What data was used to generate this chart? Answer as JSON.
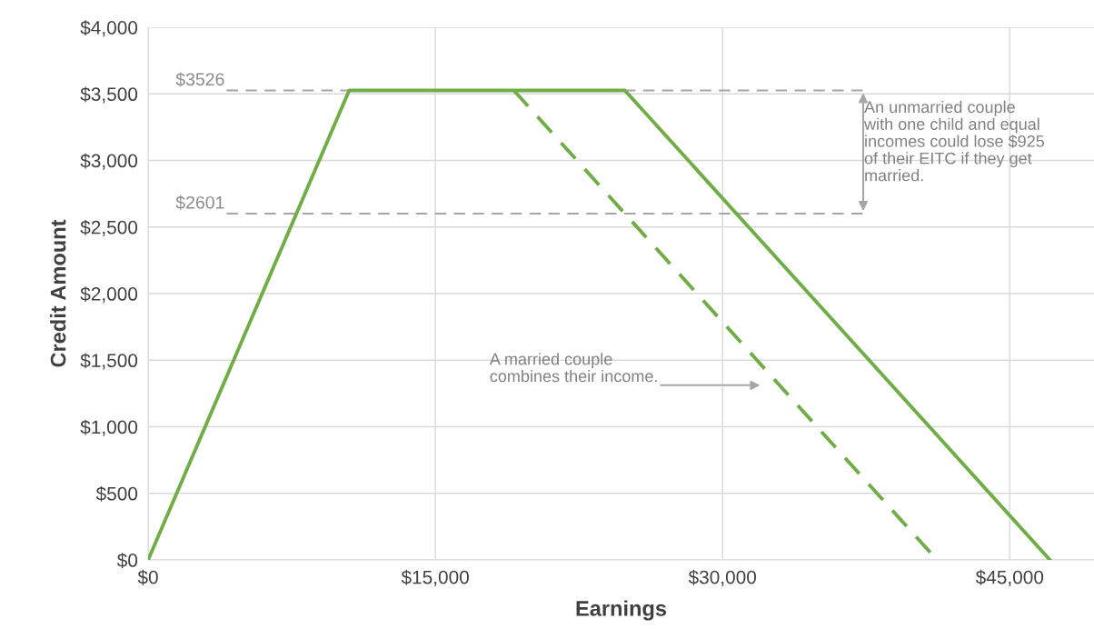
{
  "chart_data": {
    "type": "line",
    "xlabel": "Earnings",
    "ylabel": "Credit Amount",
    "series": [
      {
        "x": [
          0,
          10500,
          24900,
          47100
        ],
        "values": [
          0,
          3526,
          3526,
          0
        ],
        "color": "#70ad47",
        "line_style": "solid"
      },
      {
        "x": [
          19100,
          41200
        ],
        "values": [
          3526,
          0
        ],
        "color": "#70ad47",
        "line_style": "dashed"
      }
    ],
    "xlim": [
      0,
      49400
    ],
    "ylim": [
      0,
      4000
    ],
    "xticks": [
      {
        "value": 0,
        "label": "$0"
      },
      {
        "value": 15000,
        "label": "$15,000"
      },
      {
        "value": 30000,
        "label": "$30,000"
      },
      {
        "value": 45000,
        "label": "$45,000"
      }
    ],
    "yticks": [
      {
        "value": 0,
        "label": "$0"
      },
      {
        "value": 500,
        "label": "$500"
      },
      {
        "value": 1000,
        "label": "$1,000"
      },
      {
        "value": 1500,
        "label": "$1,500"
      },
      {
        "value": 2000,
        "label": "$2,000"
      },
      {
        "value": 2500,
        "label": "$2,500"
      },
      {
        "value": 3000,
        "label": "$3,000"
      },
      {
        "value": 3500,
        "label": "$3,500"
      },
      {
        "value": 4000,
        "label": "$4,000"
      }
    ],
    "ref_lines": [
      {
        "axis": "y",
        "value": 3526,
        "label": "$3526",
        "color": "#a6a6a6",
        "line_style": "dashed"
      },
      {
        "axis": "y",
        "value": 2601,
        "label": "$2601",
        "color": "#a6a6a6",
        "line_style": "dashed"
      }
    ],
    "annotations": [
      "An unmarried couple\nwith one child and equal\nincomes could lose $925\nof their EITC if they get\nmarried.",
      "A married couple\ncombines their income."
    ],
    "grid": true,
    "marker": "none"
  }
}
